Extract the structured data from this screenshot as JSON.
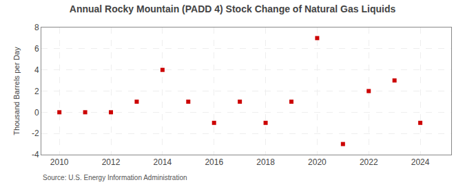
{
  "chart_data": {
    "type": "scatter",
    "title": "Annual Rocky Mountain (PADD 4) Stock Change of Natural Gas Liquids",
    "y_label": "Thousand Barrels per Day",
    "annotations": [
      "Source: U.S. Energy Information Administration"
    ],
    "x": [
      2010,
      2011,
      2012,
      2013,
      2014,
      2015,
      2016,
      2017,
      2018,
      2019,
      2020,
      2021,
      2022,
      2023,
      2024
    ],
    "values": [
      0,
      0,
      0,
      1,
      4,
      1,
      -1,
      1,
      -1,
      1,
      7,
      -3,
      2,
      3,
      -1
    ],
    "color": "#cc0000",
    "marker": "square",
    "xlim": [
      2009.3,
      2025.2
    ],
    "xticks": [
      2010,
      2012,
      2014,
      2016,
      2018,
      2020,
      2022,
      2024
    ],
    "ylim": [
      -4,
      8
    ],
    "yticks": [
      -4,
      -2,
      0,
      2,
      4,
      6,
      8
    ],
    "grid": true
  }
}
